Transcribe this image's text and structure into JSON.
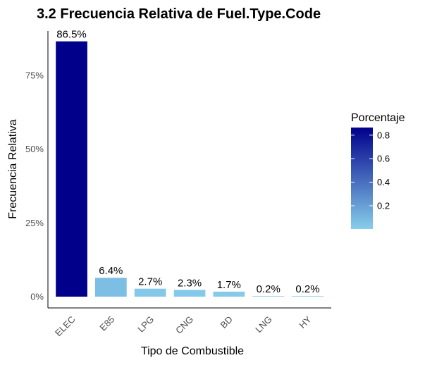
{
  "chart_data": {
    "type": "bar",
    "title": "3.2 Frecuencia Relativa de Fuel.Type.Code",
    "xlabel": "Tipo de Combustible",
    "ylabel": "Frecuencia Relativa",
    "categories": [
      "ELEC",
      "E85",
      "LPG",
      "CNG",
      "BD",
      "LNG",
      "HY"
    ],
    "values": [
      0.865,
      0.064,
      0.027,
      0.023,
      0.017,
      0.002,
      0.002
    ],
    "data_labels": [
      "86.5%",
      "6.4%",
      "2.7%",
      "2.3%",
      "1.7%",
      "0.2%",
      "0.2%"
    ],
    "ylim": [
      0,
      0.9
    ],
    "y_ticks": [
      0,
      0.25,
      0.5,
      0.75
    ],
    "y_tick_labels": [
      "0%",
      "25%",
      "50%",
      "75%"
    ],
    "grid": false,
    "fill_scale": {
      "low_color": "#87ceeb",
      "high_color": "#00008b",
      "domain": [
        0.002,
        0.865
      ]
    },
    "legend": {
      "title": "Porcentaje",
      "placement": "right",
      "ticks": [
        0.2,
        0.4,
        0.6,
        0.8
      ],
      "tick_labels": [
        "0.2",
        "0.4",
        "0.6",
        "0.8"
      ]
    }
  }
}
